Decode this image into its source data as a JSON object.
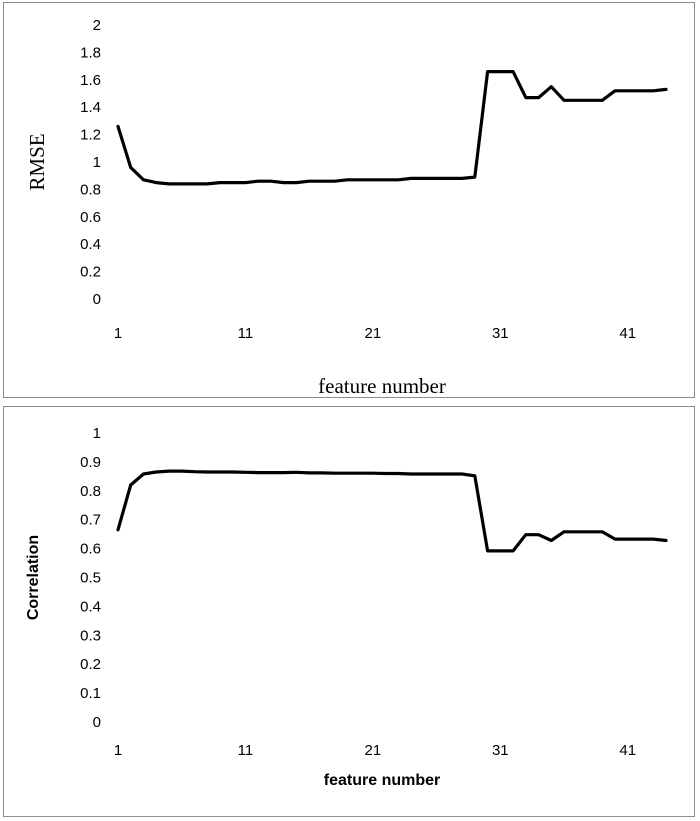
{
  "chart_data": [
    {
      "type": "line",
      "title": "",
      "xlabel": "feature number",
      "ylabel": "RMSE",
      "ylim": [
        0,
        2
      ],
      "y_ticks": [
        "0",
        "0.2",
        "0.4",
        "0.6",
        "0.8",
        "1",
        "1.2",
        "1.4",
        "1.6",
        "1.8",
        "2"
      ],
      "x_ticks": [
        "1",
        "11",
        "21",
        "31",
        "41"
      ],
      "xlim": [
        1,
        44
      ],
      "grid": false,
      "legend": "none",
      "series": [
        {
          "x": [
            1,
            2,
            3,
            4,
            5,
            6,
            7,
            8,
            9,
            10,
            11,
            12,
            13,
            14,
            15,
            16,
            17,
            18,
            19,
            20,
            21,
            22,
            23,
            24,
            25,
            26,
            27,
            28,
            29,
            30,
            31,
            32,
            33,
            34,
            35,
            36,
            37,
            38,
            39,
            40,
            41,
            42,
            43,
            44
          ],
          "values": [
            1.26,
            0.96,
            0.87,
            0.85,
            0.84,
            0.84,
            0.84,
            0.84,
            0.85,
            0.85,
            0.85,
            0.86,
            0.86,
            0.85,
            0.85,
            0.86,
            0.86,
            0.86,
            0.87,
            0.87,
            0.87,
            0.87,
            0.87,
            0.88,
            0.88,
            0.88,
            0.88,
            0.88,
            0.89,
            1.66,
            1.66,
            1.66,
            1.47,
            1.47,
            1.55,
            1.45,
            1.45,
            1.45,
            1.45,
            1.52,
            1.52,
            1.52,
            1.52,
            1.53
          ]
        }
      ]
    },
    {
      "type": "line",
      "title": "",
      "xlabel": "feature number",
      "ylabel": "Correlation",
      "ylim": [
        0,
        1
      ],
      "y_ticks": [
        "0",
        "0.1",
        "0.2",
        "0.3",
        "0.4",
        "0.5",
        "0.6",
        "0.7",
        "0.8",
        "0.9",
        "1"
      ],
      "x_ticks": [
        "1",
        "11",
        "21",
        "31",
        "41"
      ],
      "xlim": [
        1,
        44
      ],
      "grid": false,
      "legend": "none",
      "series": [
        {
          "x": [
            1,
            2,
            3,
            4,
            5,
            6,
            7,
            8,
            9,
            10,
            11,
            12,
            13,
            14,
            15,
            16,
            17,
            18,
            19,
            20,
            21,
            22,
            23,
            24,
            25,
            26,
            27,
            28,
            29,
            30,
            31,
            32,
            33,
            34,
            35,
            36,
            37,
            38,
            39,
            40,
            41,
            42,
            43,
            44
          ],
          "values": [
            0.665,
            0.82,
            0.858,
            0.865,
            0.868,
            0.868,
            0.866,
            0.865,
            0.865,
            0.865,
            0.864,
            0.863,
            0.863,
            0.863,
            0.864,
            0.862,
            0.862,
            0.861,
            0.861,
            0.861,
            0.861,
            0.86,
            0.86,
            0.858,
            0.858,
            0.858,
            0.858,
            0.858,
            0.852,
            0.592,
            0.592,
            0.592,
            0.648,
            0.648,
            0.628,
            0.658,
            0.658,
            0.658,
            0.658,
            0.633,
            0.633,
            0.633,
            0.633,
            0.628
          ]
        }
      ]
    }
  ]
}
